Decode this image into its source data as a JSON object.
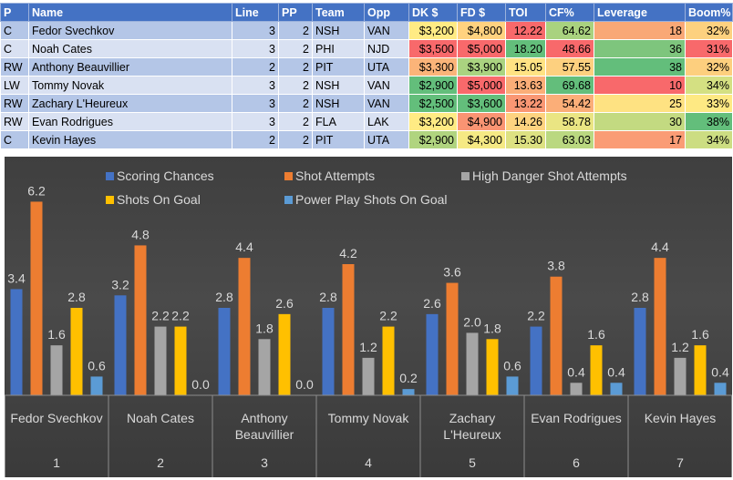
{
  "table": {
    "headers": [
      "P",
      "Name",
      "Line",
      "PP",
      "Team",
      "Opp",
      "DK $",
      "FD $",
      "TOI",
      "CF%",
      "Leverage",
      "Boom%"
    ],
    "rows": [
      {
        "p": "C",
        "name": "Fedor Svechkov",
        "line": "3",
        "pp": "2",
        "team": "NSH",
        "opp": "VAN",
        "dk": "$3,200",
        "fd": "$4,800",
        "toi": "12.22",
        "cf": "64.62",
        "leverage": "18",
        "boom": "32%",
        "colors": {
          "dk": "#ffeb84",
          "fd": "#ffd27f",
          "toi": "#f8696b",
          "cf": "#a9d27f",
          "leverage": "#f9a876",
          "boom": "#fdd17f"
        }
      },
      {
        "p": "C",
        "name": "Noah Cates",
        "line": "3",
        "pp": "2",
        "team": "PHI",
        "opp": "NJD",
        "dk": "$3,500",
        "fd": "$5,000",
        "toi": "18.20",
        "cf": "48.66",
        "leverage": "36",
        "boom": "31%",
        "colors": {
          "dk": "#f8696b",
          "fd": "#f8696b",
          "toi": "#63be7b",
          "cf": "#f8696b",
          "leverage": "#7ec57d",
          "boom": "#f8696b"
        }
      },
      {
        "p": "RW",
        "name": "Anthony Beauvillier",
        "line": "2",
        "pp": "2",
        "team": "PIT",
        "opp": "UTA",
        "dk": "$3,300",
        "fd": "$3,900",
        "toi": "15.05",
        "cf": "57.55",
        "leverage": "38",
        "boom": "32%",
        "colors": {
          "dk": "#fbb479",
          "fd": "#aad380",
          "toi": "#ffe383",
          "cf": "#fdd07f",
          "leverage": "#63be7b",
          "boom": "#fdcf7e"
        }
      },
      {
        "p": "LW",
        "name": "Tommy Novak",
        "line": "3",
        "pp": "2",
        "team": "NSH",
        "opp": "VAN",
        "dk": "$2,900",
        "fd": "$5,000",
        "toi": "13.63",
        "cf": "69.68",
        "leverage": "10",
        "boom": "34%",
        "colors": {
          "dk": "#63be7b",
          "fd": "#f8696b",
          "toi": "#fbae78",
          "cf": "#63be7b",
          "leverage": "#f8696b",
          "boom": "#d4e082"
        }
      },
      {
        "p": "RW",
        "name": "Zachary L'Heureux",
        "line": "3",
        "pp": "2",
        "team": "NSH",
        "opp": "VAN",
        "dk": "$2,500",
        "fd": "$3,600",
        "toi": "13.22",
        "cf": "54.42",
        "leverage": "25",
        "boom": "33%",
        "colors": {
          "dk": "#63be7b",
          "fd": "#63be7b",
          "toi": "#fa9774",
          "cf": "#fbae78",
          "leverage": "#fee282",
          "boom": "#fee983"
        }
      },
      {
        "p": "RW",
        "name": "Evan Rodrigues",
        "line": "3",
        "pp": "2",
        "team": "FLA",
        "opp": "LAK",
        "dk": "$3,200",
        "fd": "$4,900",
        "toi": "14.26",
        "cf": "58.78",
        "leverage": "30",
        "boom": "38%",
        "colors": {
          "dk": "#ffeb84",
          "fd": "#fa9473",
          "toi": "#fed380",
          "cf": "#eae583",
          "leverage": "#c3da81",
          "boom": "#63be7b"
        }
      },
      {
        "p": "C",
        "name": "Kevin Hayes",
        "line": "2",
        "pp": "2",
        "team": "PIT",
        "opp": "UTA",
        "dk": "$2,900",
        "fd": "$4,300",
        "toi": "15.30",
        "cf": "63.03",
        "leverage": "17",
        "boom": "34%",
        "colors": {
          "dk": "#b0d47f",
          "fd": "#f5e984",
          "toi": "#dde182",
          "cf": "#bad880",
          "leverage": "#fa9c75",
          "boom": "#ccdd82"
        }
      }
    ]
  },
  "chart_data": {
    "type": "bar",
    "title": "",
    "categories": [
      "Fedor Svechkov",
      "Noah Cates",
      "Anthony Beauvillier",
      "Tommy Novak",
      "Zachary L'Heureux",
      "Evan Rodrigues",
      "Kevin Hayes"
    ],
    "category_lines": [
      [
        "Fedor Svechkov"
      ],
      [
        "Noah Cates"
      ],
      [
        "Anthony",
        "Beauvillier"
      ],
      [
        "Tommy Novak"
      ],
      [
        "Zachary",
        "L'Heureux"
      ],
      [
        "Evan Rodrigues"
      ],
      [
        "Kevin Hayes"
      ]
    ],
    "category_numbers": [
      "1",
      "2",
      "3",
      "4",
      "5",
      "6",
      "7"
    ],
    "series": [
      {
        "name": "Scoring Chances",
        "color": "#4472c4",
        "values": [
          3.4,
          3.2,
          2.8,
          2.8,
          2.6,
          2.2,
          2.8
        ],
        "labels": [
          "3.4",
          "3.2",
          "2.8",
          "2.8",
          "2.6",
          "2.2",
          "2.8"
        ]
      },
      {
        "name": "Shot Attempts",
        "color": "#ed7d31",
        "values": [
          6.2,
          4.8,
          4.4,
          4.2,
          3.6,
          3.8,
          4.4
        ],
        "labels": [
          "6.2",
          "4.8",
          "4.4",
          "4.2",
          "3.6",
          "3.8",
          "4.4"
        ]
      },
      {
        "name": "High Danger Shot Attempts",
        "color": "#a5a5a5",
        "values": [
          1.6,
          2.2,
          1.8,
          1.2,
          2.0,
          0.4,
          1.2
        ],
        "labels": [
          "1.6",
          "2.2",
          "1.8",
          "1.2",
          "2.0",
          "0.4",
          "1.2"
        ]
      },
      {
        "name": "Shots On Goal",
        "color": "#ffc000",
        "values": [
          2.8,
          2.2,
          2.6,
          2.2,
          1.8,
          1.6,
          1.6
        ],
        "labels": [
          "2.8",
          "2.2",
          "2.6",
          "2.2",
          "1.8",
          "1.6",
          "1.6"
        ]
      },
      {
        "name": "Power Play Shots On Goal",
        "color": "#5b9bd5",
        "values": [
          0.6,
          0.0,
          0.0,
          0.2,
          0.6,
          0.4,
          0.4
        ],
        "labels": [
          "0.6",
          "0.0",
          "0.0",
          "0.2",
          "0.6",
          "0.4",
          "0.4"
        ]
      }
    ],
    "ylim": [
      0,
      7
    ],
    "legend": "top",
    "grid": false
  }
}
